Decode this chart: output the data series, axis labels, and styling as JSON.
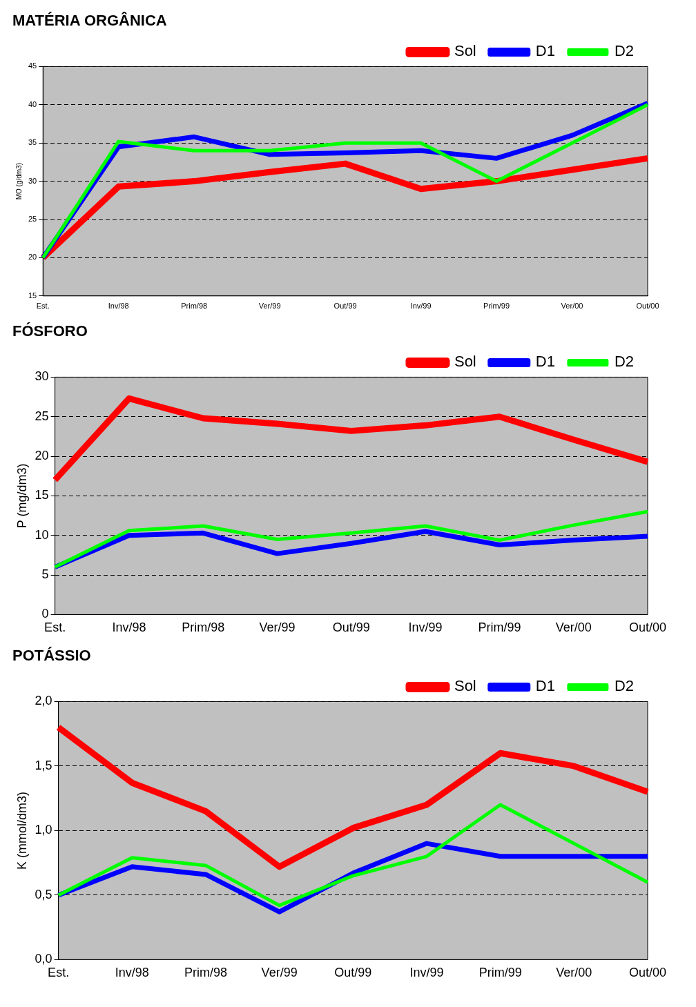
{
  "chart_data": [
    {
      "type": "line",
      "title": "MATÉRIA ORGÂNICA",
      "ylabel": "MO (g/dm3)",
      "categories": [
        "Est.",
        "Inv/98",
        "Prim/98",
        "Ver/99",
        "Out/99",
        "Inv/99",
        "Prim/99",
        "Ver/00",
        "Out/00"
      ],
      "series": [
        {
          "name": "Sol",
          "color": "#ff0000",
          "values": [
            20,
            29.3,
            30,
            31.2,
            32.3,
            29,
            30,
            31.5,
            33
          ]
        },
        {
          "name": "D1",
          "color": "#0000ff",
          "values": [
            20,
            34.5,
            35.8,
            33.5,
            33.7,
            34,
            33,
            36,
            40.2
          ]
        },
        {
          "name": "D2",
          "color": "#00ff00",
          "values": [
            20,
            35.2,
            34,
            34,
            35,
            35,
            30,
            35,
            40
          ]
        }
      ],
      "ylim": [
        15,
        45
      ],
      "yticks": [
        15,
        20,
        25,
        30,
        35,
        40,
        45
      ],
      "grid": "y",
      "legend": "top right",
      "marker": "none",
      "line_style": "solid"
    },
    {
      "type": "line",
      "title": "FÓSFORO",
      "ylabel": "P (mg/dm3)",
      "categories": [
        "Est.",
        "Inv/98",
        "Prim/98",
        "Ver/99",
        "Out/99",
        "Inv/99",
        "Prim/99",
        "Ver/00",
        "Out/00"
      ],
      "series": [
        {
          "name": "Sol",
          "color": "#ff0000",
          "values": [
            17,
            27.3,
            24.8,
            24.1,
            23.2,
            23.9,
            25,
            22.1,
            19.3
          ]
        },
        {
          "name": "D1",
          "color": "#0000ff",
          "values": [
            6,
            10,
            10.3,
            7.7,
            9,
            10.5,
            8.8,
            9.4,
            9.9
          ]
        },
        {
          "name": "D2",
          "color": "#00ff00",
          "values": [
            6,
            10.6,
            11.2,
            9.5,
            10.3,
            11.2,
            9.4,
            11.3,
            13
          ]
        }
      ],
      "ylim": [
        0,
        30
      ],
      "yticks": [
        0,
        5,
        10,
        15,
        20,
        25,
        30
      ],
      "grid": "y",
      "legend": "top right",
      "marker": "none",
      "line_style": "solid"
    },
    {
      "type": "line",
      "title": "POTÁSSIO",
      "ylabel": "K (mmol/dm3)",
      "categories": [
        "Est.",
        "Inv/98",
        "Prim/98",
        "Ver/99",
        "Out/99",
        "Inv/99",
        "Prim/99",
        "Ver/00",
        "Out/00"
      ],
      "series": [
        {
          "name": "Sol",
          "color": "#ff0000",
          "values": [
            1.8,
            1.37,
            1.15,
            0.72,
            1.02,
            1.2,
            1.6,
            1.5,
            1.3
          ]
        },
        {
          "name": "D1",
          "color": "#0000ff",
          "values": [
            0.5,
            0.72,
            0.66,
            0.37,
            0.67,
            0.9,
            0.8,
            0.8,
            0.8
          ]
        },
        {
          "name": "D2",
          "color": "#00ff00",
          "values": [
            0.5,
            0.79,
            0.73,
            0.42,
            0.65,
            0.8,
            1.2,
            0.9,
            0.6
          ]
        }
      ],
      "ylim": [
        0,
        2
      ],
      "yticks": [
        {
          "value": 0,
          "label": "0,0"
        },
        {
          "value": 0.5,
          "label": "0,5"
        },
        {
          "value": 1,
          "label": "1,0"
        },
        {
          "value": 1.5,
          "label": "1,5"
        },
        {
          "value": 2,
          "label": "2,0"
        }
      ],
      "grid": "y",
      "legend": "top right",
      "marker": "none",
      "line_style": "solid"
    }
  ]
}
